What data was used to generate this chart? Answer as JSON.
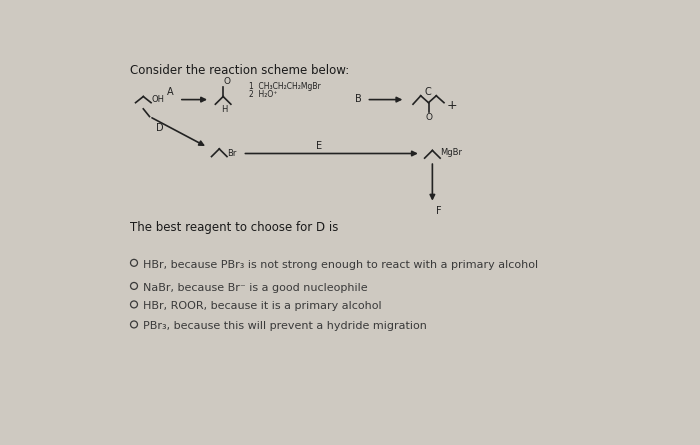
{
  "title": "Consider the reaction scheme below:",
  "question": "The best reagent to choose for D is",
  "options": [
    "HBr, because PBr₃ is not strong enough to react with a primary alcohol",
    "NaBr, because Br⁻ is a good nucleophile",
    "HBr, ROOR, because it is a primary alcohol",
    "PBr₃, because this will prevent a hydride migration"
  ],
  "bg_color": "#cec9c1",
  "text_color": "#1a1a1a",
  "option_color": "#3a3a3a",
  "line_color": "#222222",
  "title_fontsize": 8.5,
  "question_fontsize": 8.5,
  "option_fontsize": 8.0,
  "chem_scale": 1.0
}
